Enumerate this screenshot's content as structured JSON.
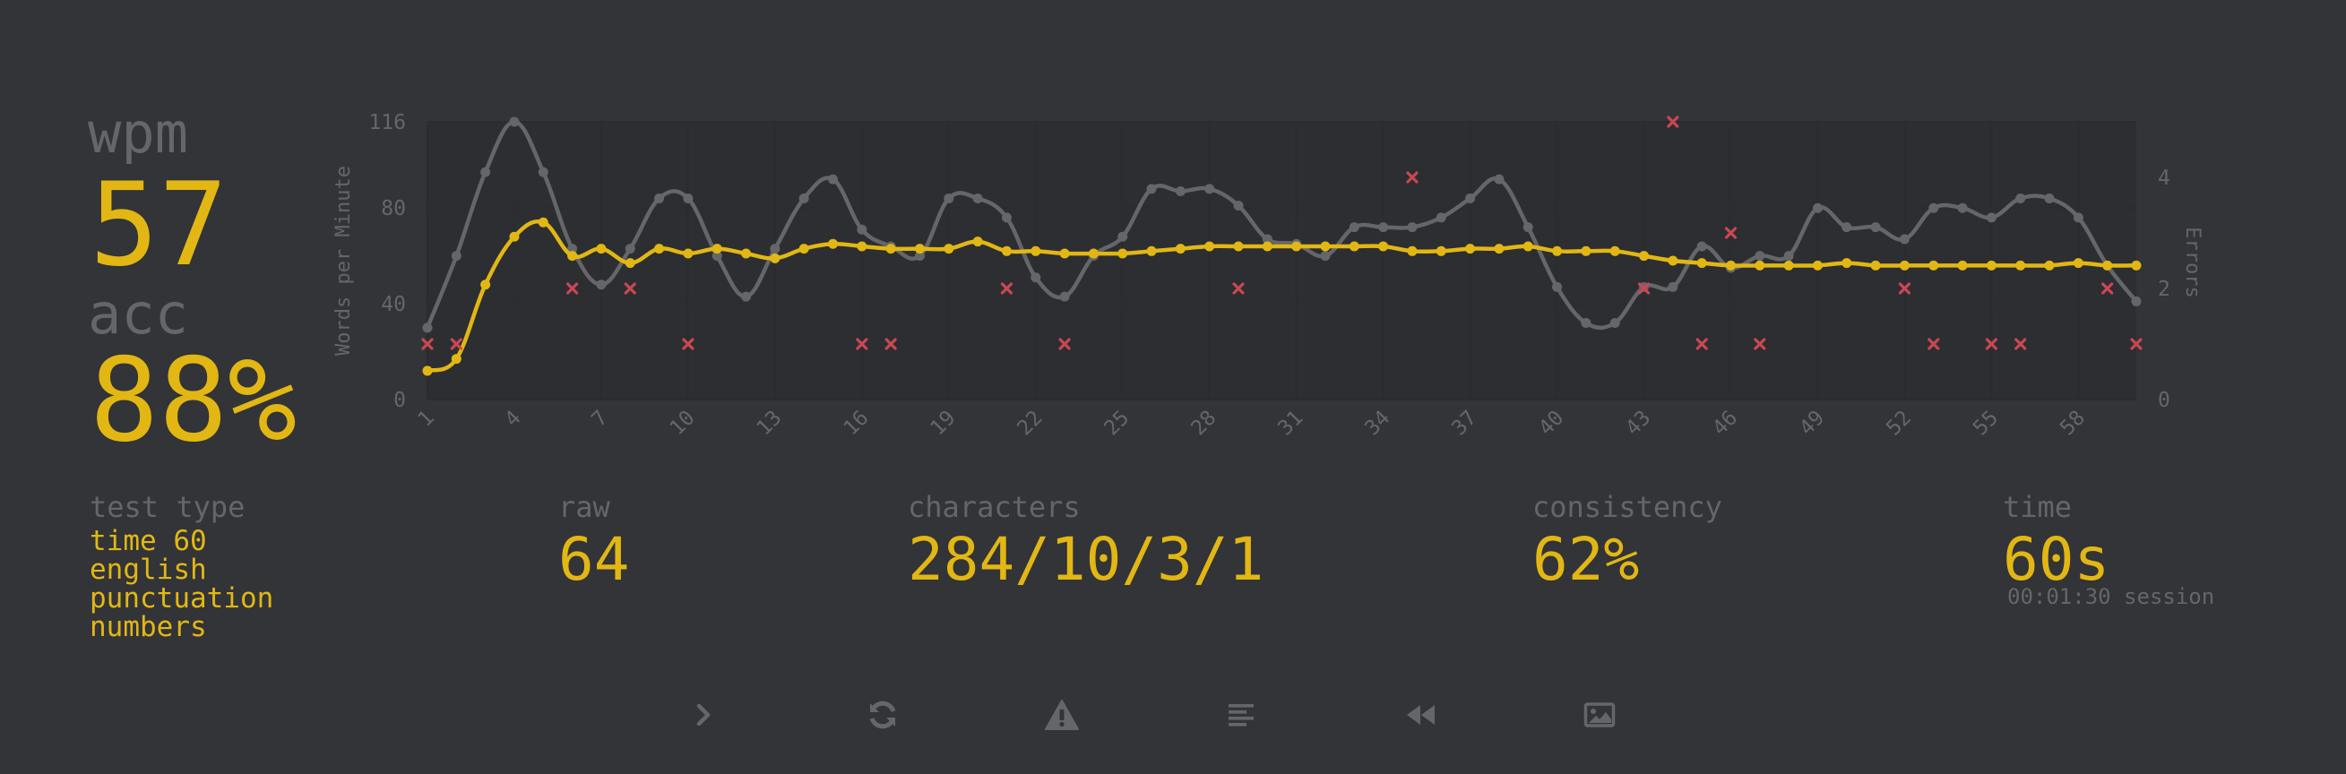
{
  "stats": {
    "wpm_label": "wpm",
    "wpm_value": "57",
    "acc_label": "acc",
    "acc_value": "88%"
  },
  "test_type": {
    "label": "test type",
    "items": [
      "time 60",
      "english",
      "punctuation",
      "numbers"
    ]
  },
  "raw": {
    "label": "raw",
    "value": "64"
  },
  "characters": {
    "label": "characters",
    "value": "284/10/3/1"
  },
  "consistency": {
    "label": "consistency",
    "value": "62%"
  },
  "time": {
    "label": "time",
    "value": "60s",
    "session": "00:01:30 session"
  },
  "colors": {
    "accent": "#e2b714",
    "sub": "#646669",
    "background": "#323437",
    "error": "#ca4754"
  },
  "buttons": [
    {
      "name": "next-test-button",
      "icon": "chevron-right-icon"
    },
    {
      "name": "restart-button",
      "icon": "refresh-icon"
    },
    {
      "name": "report-button",
      "icon": "warning-icon"
    },
    {
      "name": "words-history-button",
      "icon": "align-left-icon"
    },
    {
      "name": "replay-button",
      "icon": "backward-icon"
    },
    {
      "name": "screenshot-button",
      "icon": "image-icon"
    }
  ],
  "chart_data": {
    "type": "line",
    "ylabel": "Words per Minute",
    "y2label": "Errors",
    "ylim": [
      0,
      116
    ],
    "yticks": [
      0,
      40,
      80,
      116
    ],
    "y2lim": [
      0,
      5
    ],
    "y2ticks": [
      0,
      2,
      4
    ],
    "xticks": [
      1,
      4,
      7,
      10,
      13,
      16,
      19,
      22,
      25,
      28,
      31,
      34,
      37,
      40,
      43,
      46,
      49,
      52,
      55,
      58
    ],
    "x": [
      1,
      2,
      3,
      4,
      5,
      6,
      7,
      8,
      9,
      10,
      11,
      12,
      13,
      14,
      15,
      16,
      17,
      18,
      19,
      20,
      21,
      22,
      23,
      24,
      25,
      26,
      27,
      28,
      29,
      30,
      31,
      32,
      33,
      34,
      35,
      36,
      37,
      38,
      39,
      40,
      41,
      42,
      43,
      44,
      45,
      46,
      47,
      48,
      49,
      50,
      51,
      52,
      53,
      54,
      55,
      56,
      57,
      58,
      59,
      60
    ],
    "grid": true,
    "legend": "none",
    "series": [
      {
        "key": "raw",
        "color": "#646669",
        "values": [
          30,
          60,
          95,
          116,
          95,
          63,
          48,
          63,
          84,
          84,
          60,
          43,
          63,
          84,
          92,
          71,
          64,
          60,
          84,
          84,
          76,
          51,
          43,
          60,
          68,
          88,
          87,
          88,
          81,
          67,
          65,
          60,
          72,
          72,
          72,
          76,
          84,
          92,
          72,
          47,
          32,
          32,
          47,
          47,
          64,
          55,
          60,
          60,
          80,
          72,
          72,
          67,
          80,
          80,
          76,
          84,
          84,
          76,
          56,
          41
        ]
      },
      {
        "key": "wpm",
        "color": "#e2b714",
        "values": [
          12,
          17,
          48,
          68,
          74,
          60,
          63,
          57,
          63,
          61,
          63,
          61,
          59,
          63,
          65,
          64,
          63,
          63,
          63,
          66,
          62,
          62,
          61,
          61,
          61,
          62,
          63,
          64,
          64,
          64,
          64,
          64,
          64,
          64,
          62,
          62,
          63,
          63,
          64,
          62,
          62,
          62,
          60,
          58,
          57,
          56,
          56,
          56,
          56,
          57,
          56,
          56,
          56,
          56,
          56,
          56,
          56,
          57,
          56,
          56
        ]
      }
    ],
    "errors": [
      {
        "x": 1,
        "y": 1
      },
      {
        "x": 2,
        "y": 1
      },
      {
        "x": 6,
        "y": 2
      },
      {
        "x": 8,
        "y": 2
      },
      {
        "x": 10,
        "y": 1
      },
      {
        "x": 16,
        "y": 1
      },
      {
        "x": 17,
        "y": 1
      },
      {
        "x": 21,
        "y": 2
      },
      {
        "x": 23,
        "y": 1
      },
      {
        "x": 29,
        "y": 2
      },
      {
        "x": 35,
        "y": 4
      },
      {
        "x": 43,
        "y": 2
      },
      {
        "x": 44,
        "y": 5
      },
      {
        "x": 45,
        "y": 1
      },
      {
        "x": 46,
        "y": 3
      },
      {
        "x": 47,
        "y": 1
      },
      {
        "x": 52,
        "y": 2
      },
      {
        "x": 53,
        "y": 1
      },
      {
        "x": 55,
        "y": 1
      },
      {
        "x": 56,
        "y": 1
      },
      {
        "x": 59,
        "y": 2
      },
      {
        "x": 60,
        "y": 1
      }
    ]
  }
}
